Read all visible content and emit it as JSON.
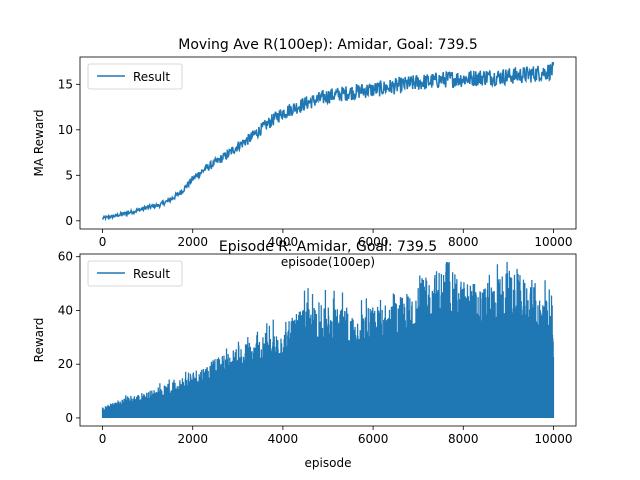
{
  "chart_data": [
    {
      "type": "line",
      "title": "Moving Ave R(100ep): Amidar, Goal: 739.5",
      "xlabel": "episode(100ep)",
      "ylabel": "MA Reward",
      "xlim": [
        -500,
        10500
      ],
      "ylim": [
        -0.9,
        18.0
      ],
      "xticks": [
        0,
        2000,
        4000,
        6000,
        8000,
        10000
      ],
      "yticks": [
        0,
        5,
        10,
        15
      ],
      "legend": {
        "placement": "top-left",
        "entries": [
          "Result"
        ]
      },
      "grid": false,
      "color": "#1f77b4",
      "series": [
        {
          "name": "Result",
          "x": [
            0,
            250,
            500,
            750,
            1000,
            1250,
            1500,
            1750,
            2000,
            2250,
            2500,
            2750,
            3000,
            3250,
            3500,
            3750,
            4000,
            4250,
            4500,
            4750,
            5000,
            5250,
            5500,
            5750,
            6000,
            6250,
            6500,
            6750,
            7000,
            7250,
            7500,
            7750,
            8000,
            8250,
            8500,
            8750,
            9000,
            9250,
            9500,
            9750,
            10000
          ],
          "values": [
            0.3,
            0.5,
            0.8,
            1.1,
            1.5,
            1.7,
            2.3,
            3.2,
            4.6,
            5.6,
            6.4,
            7.2,
            8.2,
            9.0,
            10.0,
            11.0,
            11.9,
            12.4,
            12.9,
            13.3,
            13.7,
            13.9,
            14.1,
            14.3,
            14.4,
            14.6,
            14.8,
            15.0,
            15.2,
            15.3,
            15.5,
            15.6,
            15.6,
            15.7,
            15.8,
            15.8,
            15.9,
            16.0,
            16.1,
            16.3,
            16.5
          ]
        }
      ]
    },
    {
      "type": "area",
      "title": "Episode R: Amidar, Goal: 739.5",
      "xlabel": "episode",
      "ylabel": "Reward",
      "xlim": [
        -500,
        10500
      ],
      "ylim": [
        -3,
        61
      ],
      "xticks": [
        0,
        2000,
        4000,
        6000,
        8000,
        10000
      ],
      "yticks": [
        0,
        20,
        40,
        60
      ],
      "legend": {
        "placement": "top-left",
        "entries": [
          "Result"
        ]
      },
      "grid": false,
      "color": "#1f77b4",
      "series": [
        {
          "name": "Result",
          "x": [
            0,
            500,
            1000,
            1500,
            2000,
            2500,
            3000,
            3500,
            4000,
            4500,
            5000,
            5500,
            6000,
            6500,
            7000,
            7500,
            8000,
            8500,
            9000,
            9500,
            10000
          ],
          "values_min": [
            0,
            0,
            0,
            0,
            0,
            0,
            0,
            0,
            0,
            0,
            0,
            0,
            0,
            0,
            0,
            0,
            0,
            0,
            0,
            0,
            0
          ],
          "values_max": [
            4,
            8,
            10,
            13,
            18,
            22,
            27,
            31,
            34,
            42,
            42,
            40,
            42,
            44,
            50,
            57,
            52,
            50,
            55,
            52,
            41
          ]
        }
      ]
    }
  ]
}
